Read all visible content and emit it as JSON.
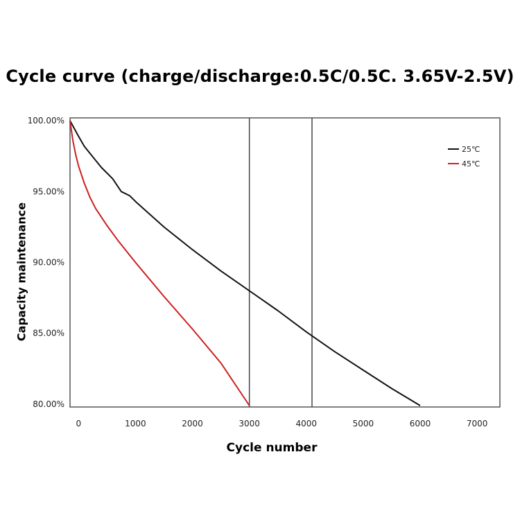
{
  "chart_data": {
    "type": "line",
    "title": "Cycle curve (charge/discharge:0.5C/0.5C. 3.65V-2.5V)",
    "xlabel": "Cycle number",
    "ylabel": "Capacity maintenance",
    "xlim": [
      -150,
      7400
    ],
    "ylim": [
      79.8,
      100.2
    ],
    "x_ticks": [
      0,
      1000,
      2000,
      3000,
      4000,
      5000,
      6000,
      7000
    ],
    "x_tick_labels": [
      "0",
      "1000",
      "2000",
      "3000",
      "4000",
      "5000",
      "6000",
      "7000"
    ],
    "y_ticks": [
      100,
      95,
      90,
      85,
      80
    ],
    "y_tick_labels": [
      "100.00%",
      "95.00%",
      "90.00%",
      "85.00%",
      "80.00%"
    ],
    "highlight_lines_x": [
      3000,
      4100
    ],
    "legend_position": "top-right",
    "grid": false,
    "series": [
      {
        "name": "25℃",
        "color": "#111111",
        "x": [
          -150,
          0,
          100,
          200,
          400,
          600,
          700,
          750,
          800,
          900,
          1000,
          1500,
          2000,
          2500,
          3000,
          3500,
          4000,
          4500,
          5000,
          5500,
          6000
        ],
        "y": [
          100.0,
          98.9,
          98.2,
          97.7,
          96.7,
          95.9,
          95.3,
          95.0,
          94.9,
          94.7,
          94.3,
          92.5,
          90.9,
          89.4,
          88.0,
          86.6,
          85.1,
          83.7,
          82.4,
          81.1,
          79.9
        ]
      },
      {
        "name": "45℃",
        "color": "#cc1f1f",
        "x": [
          -150,
          -100,
          -50,
          0,
          100,
          200,
          300,
          500,
          700,
          1000,
          1500,
          2000,
          2500,
          3000
        ],
        "y": [
          100.0,
          98.6,
          97.6,
          96.8,
          95.6,
          94.6,
          93.8,
          92.6,
          91.5,
          90.0,
          87.6,
          85.3,
          82.9,
          79.9
        ]
      }
    ]
  }
}
